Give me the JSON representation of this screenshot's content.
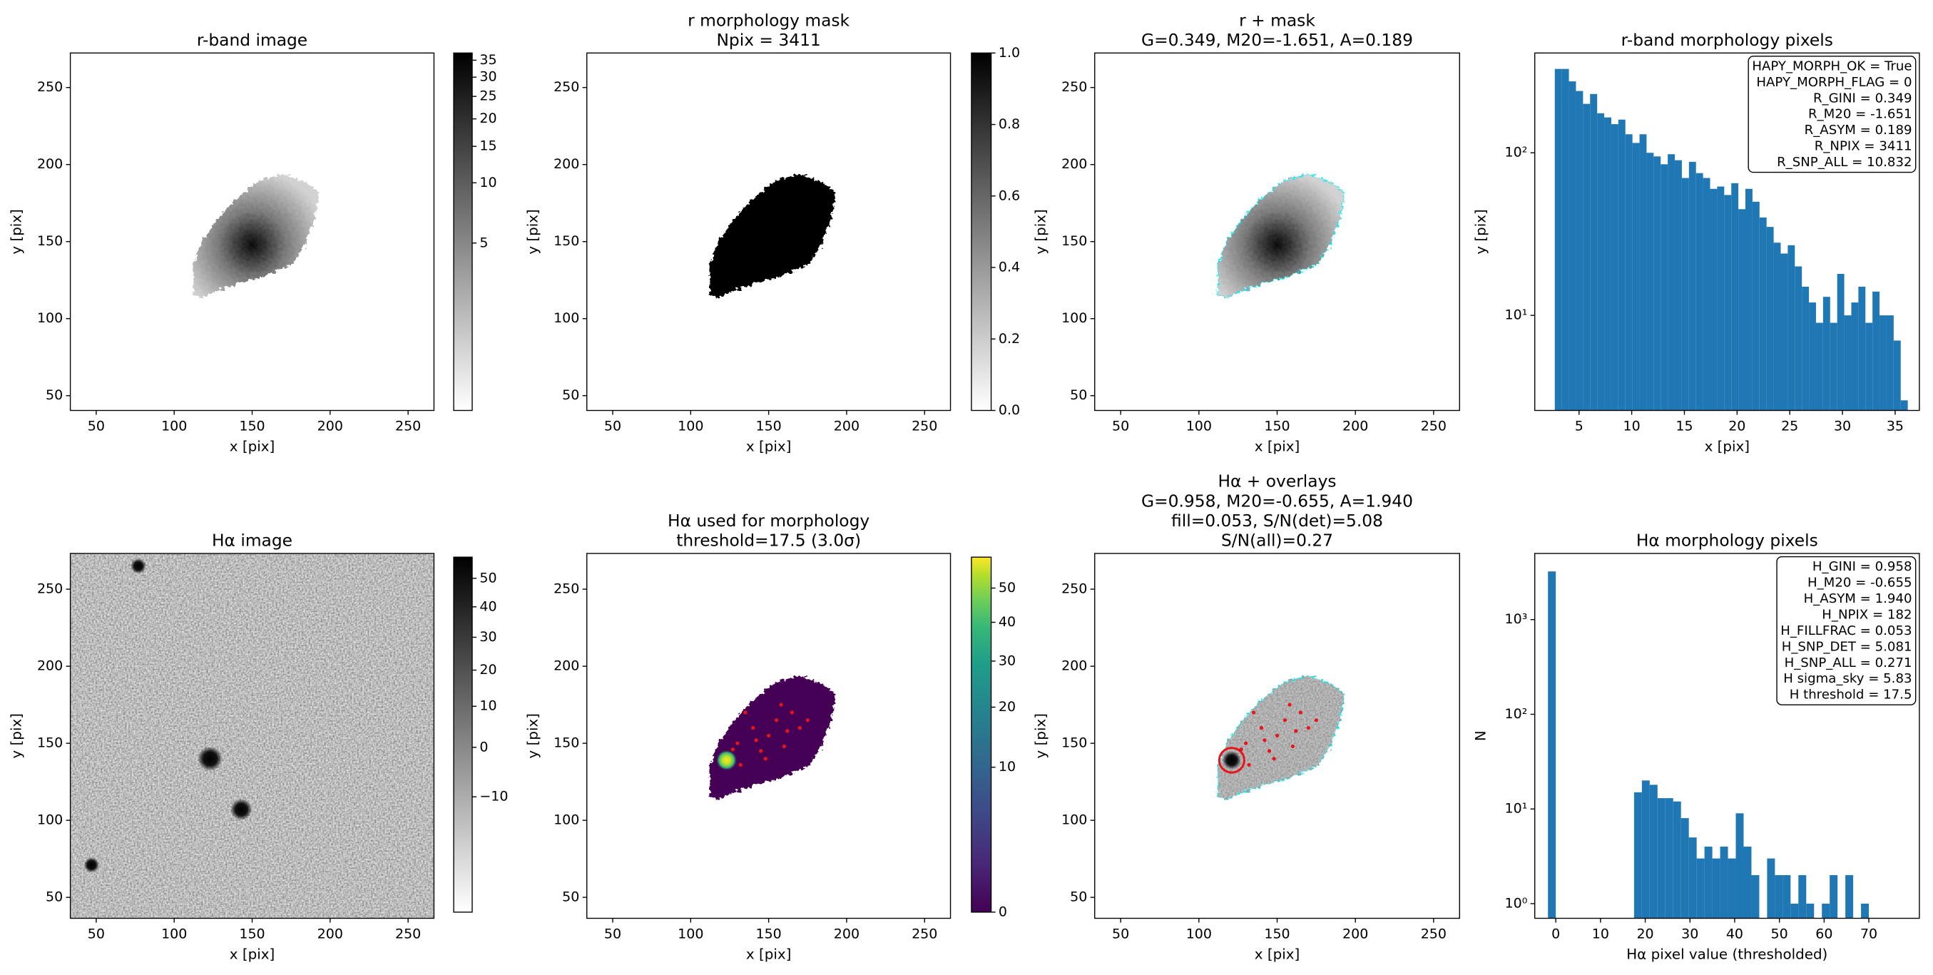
{
  "chart_data": [
    {
      "type": "image",
      "title": [
        "r-band image"
      ],
      "xlabel": "x [pix]",
      "ylabel": "y [pix]",
      "xlim": [
        33.4,
        266.6
      ],
      "ylim": [
        40.4,
        272.4
      ],
      "xticks": [
        50,
        100,
        150,
        200,
        250
      ],
      "yticks": [
        50,
        100,
        150,
        200,
        250
      ],
      "colorbar": {
        "cmap": "gray_r",
        "clim": [
          2.2,
          37.3
        ],
        "power": 0.3,
        "ticks": [
          5,
          10,
          15,
          20,
          25,
          30,
          35
        ]
      }
    },
    {
      "type": "image",
      "title": [
        "r morphology mask",
        "Npix = 3411"
      ],
      "xlabel": "x [pix]",
      "ylabel": "y [pix]",
      "xlim": [
        33.4,
        266.6
      ],
      "ylim": [
        40.4,
        272.4
      ],
      "xticks": [
        50,
        100,
        150,
        200,
        250
      ],
      "yticks": [
        50,
        100,
        150,
        200,
        250
      ],
      "colorbar": {
        "cmap": "gray_r",
        "clim": [
          0,
          1
        ],
        "power": 1,
        "ticks": [
          {
            "value": 0,
            "label": "0.0"
          },
          0.2,
          0.4,
          0.6,
          0.8,
          {
            "value": 1,
            "label": "1.0"
          }
        ]
      }
    },
    {
      "type": "image",
      "title": [
        "r + mask",
        "G=0.349, M20=-1.651, A=0.189"
      ],
      "xlabel": "x [pix]",
      "ylabel": "y [pix]",
      "xlim": [
        33.4,
        266.6
      ],
      "ylim": [
        40.4,
        272.4
      ],
      "xticks": [
        50,
        100,
        150,
        200,
        250
      ],
      "yticks": [
        50,
        100,
        150,
        200,
        250
      ]
    },
    {
      "type": "histogram",
      "title": [
        "r-band morphology pixels"
      ],
      "xlabel": "x [pix]",
      "ylabel": "y [pix]",
      "color": "#1f77b4",
      "yscale": "log",
      "xlim": [
        0.8,
        37.3
      ],
      "ylim": [
        2.6,
        411
      ],
      "xticks": [
        5,
        10,
        15,
        20,
        25,
        30,
        35
      ],
      "yticks": [
        {
          "value": 10,
          "label": "10¹"
        },
        {
          "value": 100,
          "label": "10²"
        }
      ],
      "bins": [
        2.7,
        3.37,
        4.04,
        4.71,
        5.38,
        6.05,
        6.72,
        7.39,
        8.06,
        8.73,
        9.4,
        10.07,
        10.74,
        11.41,
        12.08,
        12.75,
        13.42,
        14.09,
        14.76,
        15.43,
        16.1,
        16.77,
        17.44,
        18.11,
        18.78,
        19.45,
        20.12,
        20.79,
        21.46,
        22.13,
        22.8,
        23.47,
        24.14,
        24.81,
        25.48,
        26.15,
        26.82,
        27.49,
        28.16,
        28.83,
        29.5,
        30.17,
        30.84,
        31.51,
        32.18,
        32.85,
        33.52,
        34.19,
        34.86,
        35.53,
        36.2
      ],
      "values": [
        328,
        328,
        275,
        240,
        200,
        230,
        175,
        165,
        150,
        160,
        130,
        115,
        130,
        100,
        95,
        85,
        98,
        90,
        70,
        88,
        75,
        70,
        60,
        62,
        55,
        65,
        45,
        60,
        50,
        40,
        35,
        28,
        24,
        27,
        20,
        15,
        12,
        9,
        13,
        9,
        18,
        10,
        12,
        15,
        9,
        14,
        10,
        10,
        7,
        3
      ],
      "annotation": [
        "HAPY_MORPH_OK = True",
        "HAPY_MORPH_FLAG = 0",
        "R_GINI = 0.349",
        "R_M20 = -1.651",
        "R_ASYM = 0.189",
        "R_NPIX = 3411",
        "R_SNP_ALL = 10.832"
      ]
    },
    {
      "type": "image",
      "title": [
        "Hα image"
      ],
      "xlabel": "x [pix]",
      "ylabel": "y [pix]",
      "xlim": [
        33.4,
        266.6
      ],
      "ylim": [
        36.4,
        273.2
      ],
      "xticks": [
        50,
        100,
        150,
        200,
        250
      ],
      "yticks": [
        50,
        100,
        150,
        200,
        250
      ],
      "colorbar": {
        "cmap": "gray_r",
        "clim": [
          -22.3,
          57.8
        ],
        "power": 0.6,
        "ticks": [
          {
            "value": -10,
            "label": "−10"
          },
          0,
          10,
          20,
          30,
          40,
          50
        ]
      }
    },
    {
      "type": "image",
      "title": [
        "Hα used for morphology",
        "threshold=17.5 (3.0σ)"
      ],
      "xlabel": "x [pix]",
      "ylabel": "y [pix]",
      "xlim": [
        33.4,
        266.6
      ],
      "ylim": [
        36.4,
        273.2
      ],
      "xticks": [
        50,
        100,
        150,
        200,
        250
      ],
      "yticks": [
        50,
        100,
        150,
        200,
        250
      ],
      "colorbar": {
        "cmap": "viridis",
        "clim": [
          0,
          60
        ],
        "power": 0.5,
        "ticks": [
          0,
          10,
          20,
          30,
          40,
          50
        ]
      }
    },
    {
      "type": "image",
      "title": [
        "Hα + overlays",
        "G=0.958, M20=-0.655, A=1.940",
        "fill=0.053, S/N(det)=5.08",
        "S/N(all)=0.27"
      ],
      "xlabel": "x [pix]",
      "ylabel": "y [pix]",
      "xlim": [
        33.4,
        266.6
      ],
      "ylim": [
        36.4,
        273.2
      ],
      "xticks": [
        50,
        100,
        150,
        200,
        250
      ],
      "yticks": [
        50,
        100,
        150,
        200,
        250
      ]
    },
    {
      "type": "histogram",
      "title": [
        "Hα morphology pixels"
      ],
      "xlabel": "Hα pixel value (thresholded)",
      "ylabel": "N",
      "color": "#1f77b4",
      "yscale": "log",
      "xlim": [
        -4.7,
        81.3
      ],
      "ylim": [
        0.7,
        5000
      ],
      "xticks": [
        0,
        10,
        20,
        30,
        40,
        50,
        60,
        70
      ],
      "yticks": [
        {
          "value": 1,
          "label": "10⁰"
        },
        {
          "value": 10,
          "label": "10¹"
        },
        {
          "value": 100,
          "label": "10²"
        },
        {
          "value": 1000,
          "label": "10³"
        }
      ],
      "bins": [
        -1.75,
        0,
        1.75,
        3.5,
        5.25,
        7,
        8.75,
        10.5,
        12.25,
        14,
        15.75,
        17.5,
        19.25,
        21,
        22.75,
        24.5,
        26.25,
        28,
        29.75,
        31.5,
        33.25,
        35,
        36.75,
        38.5,
        40.25,
        42,
        43.75,
        45.5,
        47.25,
        49,
        50.75,
        52.5,
        54.25,
        56,
        57.75,
        59.5,
        61.25,
        63,
        64.75,
        66.5,
        68.25,
        70
      ],
      "values": [
        3229,
        0,
        0,
        0,
        0,
        0,
        0,
        0,
        0,
        0,
        0,
        15,
        20,
        18,
        13,
        13,
        12,
        8,
        5,
        3,
        4,
        3,
        4,
        3,
        9,
        4,
        2,
        0,
        3,
        2,
        2,
        1,
        2,
        1,
        0,
        1,
        2,
        0,
        2,
        0,
        1
      ],
      "annotation": [
        "H_GINI = 0.958",
        "H_M20 = -0.655",
        "H_ASYM = 1.940",
        "H_NPIX = 182",
        "H_FILLFRAC = 0.053",
        "H_SNP_DET = 5.081",
        "H_SNP_ALL = 0.271",
        "H sigma_sky = 5.83",
        "H threshold = 17.5"
      ]
    }
  ]
}
